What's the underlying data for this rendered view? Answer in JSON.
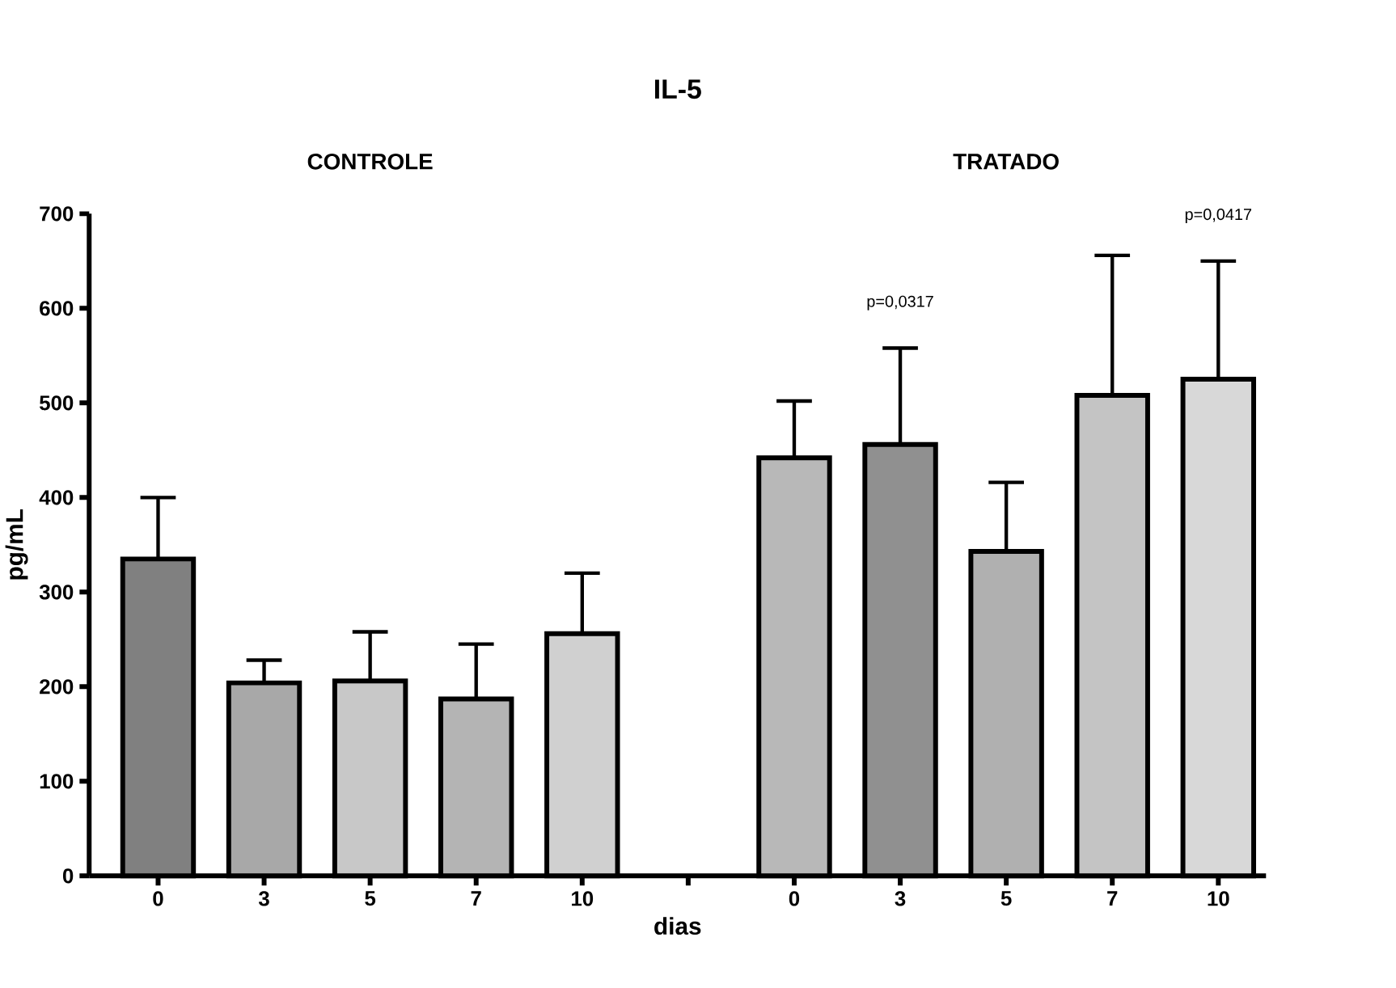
{
  "chart_data": {
    "type": "bar",
    "title": "IL-5",
    "xlabel": "dias",
    "ylabel": "pg/mL",
    "annotations": [
      "CONTROLE",
      "TRATADO",
      "p=0,0317",
      "p=0,0417"
    ],
    "categories": [
      "0",
      "3",
      "5",
      "7",
      "10",
      null,
      "0",
      "3",
      "5",
      "7",
      "10"
    ],
    "values": [
      335,
      204,
      206,
      187,
      256,
      null,
      442,
      456,
      343,
      508,
      525
    ],
    "errors": [
      [
        335,
        400
      ],
      [
        204,
        228
      ],
      [
        206,
        258
      ],
      [
        187,
        245
      ],
      [
        256,
        320
      ],
      null,
      [
        442,
        502
      ],
      [
        456,
        558
      ],
      [
        343,
        416
      ],
      [
        508,
        656
      ],
      [
        525,
        650
      ]
    ],
    "colors": [
      "#808080",
      "#a8a8a8",
      "#c8c8c8",
      "#b4b4b4",
      "#d0d0d0",
      null,
      "#b8b8b8",
      "#909090",
      "#b0b0b0",
      "#c4c4c4",
      "#d8d8d8"
    ],
    "ylim": [
      0,
      700
    ],
    "yticks": [
      0,
      100,
      200,
      300,
      400,
      500,
      600,
      700
    ]
  }
}
